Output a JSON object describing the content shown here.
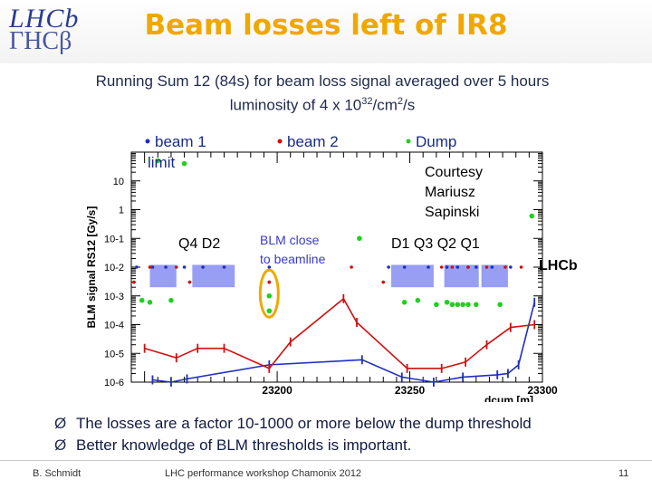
{
  "header": {
    "logo_line1": "LHCb",
    "logo_line2": "ΓHCβ",
    "title": "Beam losses left of IR8"
  },
  "subtitle": {
    "line1": "Running Sum 12 (84s) for beam loss signal averaged over 5 hours",
    "line2_prefix": "luminosity of 4 x 10",
    "line2_exp": "32",
    "line2_mid": "/cm",
    "line2_exp2": "2",
    "line2_suffix": "/s"
  },
  "chart_data": {
    "type": "scatter",
    "xlabel": "dcum [m]",
    "ylabel": "BLM signal RS12 [Gy/s]",
    "xlim": [
      23145,
      23300
    ],
    "ylim": [
      1e-06,
      100
    ],
    "y_scale": "log",
    "x_ticks": [
      23200,
      23250,
      23300
    ],
    "y_ticks": [
      {
        "value": 10,
        "label": "10"
      },
      {
        "value": 1,
        "label": "1"
      },
      {
        "value": 0.1,
        "label": "10-1"
      },
      {
        "value": 0.01,
        "label": "10-2"
      },
      {
        "value": 0.001,
        "label": "10-3"
      },
      {
        "value": 0.0001,
        "label": "10-4"
      },
      {
        "value": 1e-05,
        "label": "10-5"
      },
      {
        "value": 1e-06,
        "label": "10-6"
      }
    ],
    "legend": [
      {
        "label": "beam 1",
        "color": "#1f2fbf"
      },
      {
        "label": "beam 2",
        "color": "#d01010"
      },
      {
        "label": "Dump",
        "color": "#20d020"
      }
    ],
    "series": [
      {
        "name": "beam 1",
        "color": "#1f2fbf",
        "x": [
          23153,
          23160,
          23166,
          23197,
          23232,
          23247,
          23259,
          23270,
          23283,
          23287,
          23291,
          23297
        ],
        "y": [
          1.2e-06,
          1e-06,
          1.3e-06,
          4e-06,
          6e-06,
          1.5e-06,
          1e-06,
          1.5e-06,
          1.8e-06,
          2e-06,
          4e-06,
          0.0006
        ]
      },
      {
        "name": "beam 2",
        "color": "#d01010",
        "x": [
          23150,
          23162,
          23170,
          23180,
          23197,
          23205,
          23225,
          23230,
          23249,
          23262,
          23271,
          23279,
          23288,
          23297
        ],
        "y": [
          1.5e-05,
          7e-06,
          1.5e-05,
          1.5e-05,
          3e-06,
          2.5e-05,
          0.0008,
          0.00012,
          3e-06,
          3e-06,
          5e-06,
          2e-05,
          8e-05,
          0.0001
        ]
      },
      {
        "name": "Dump",
        "color": "#20d020",
        "x": [
          23155,
          23165,
          23197,
          23197,
          23231,
          23248,
          23253,
          23260,
          23264,
          23266,
          23268,
          23270,
          23272,
          23275,
          23284,
          23296
        ],
        "y": [
          50,
          40,
          0.001,
          0.0003,
          0.1,
          0.0006,
          0.0007,
          0.0005,
          0.0006,
          0.0005,
          0.0005,
          0.0005,
          0.0005,
          0.0005,
          0.0005,
          0.6
        ]
      },
      {
        "name": "dump-low",
        "color": "#20d020",
        "x": [
          23149,
          23152,
          23160
        ],
        "y": [
          0.0007,
          0.0006,
          0.0007
        ]
      }
    ],
    "markers": {
      "blue_dots": {
        "x": [
          23147,
          23153,
          23158,
          23165,
          23172,
          23180,
          23197,
          23197,
          23242,
          23248,
          23257,
          23264,
          23268,
          23272,
          23275,
          23281,
          23288
        ],
        "y": [
          0.01,
          0.01,
          0.01,
          0.01,
          0.01,
          0.01,
          0.01,
          0.003,
          0.01,
          0.01,
          0.01,
          0.01,
          0.01,
          0.01,
          0.01,
          0.01,
          0.01
        ]
      },
      "red_dots": {
        "x": [
          23146,
          23152,
          23162,
          23167,
          23197,
          23228,
          23240,
          23262,
          23266,
          23272,
          23279,
          23286,
          23292
        ],
        "y": [
          0.003,
          0.01,
          0.01,
          0.003,
          0.003,
          0.01,
          0.003,
          0.01,
          0.01,
          0.01,
          0.01,
          0.01,
          0.01
        ]
      },
      "bands": [
        {
          "x0": 23152,
          "x1": 23162,
          "y0": 0.002,
          "y1": 0.012
        },
        {
          "x0": 23168,
          "x1": 23184,
          "y0": 0.002,
          "y1": 0.012
        },
        {
          "x0": 23243,
          "x1": 23259,
          "y0": 0.002,
          "y1": 0.012
        },
        {
          "x0": 23263,
          "x1": 23276,
          "y0": 0.002,
          "y1": 0.012
        },
        {
          "x0": 23277,
          "x1": 23287,
          "y0": 0.002,
          "y1": 0.012
        }
      ]
    },
    "annotations": {
      "magnets_left": "Q4  D2",
      "blm_close": [
        "BLM close",
        "to beamline"
      ],
      "magnets_right": "D1  Q3  Q2  Q1",
      "courtesy": [
        "Courtesy",
        "Mariusz",
        "Sapinski"
      ],
      "experiment": "LHCb",
      "limit": "limit"
    }
  },
  "bullets": [
    "The losses are a factor 10-1000 or more below the dump threshold",
    "Better knowledge of BLM thresholds is important."
  ],
  "bullet_glyph": "Ø",
  "footer": {
    "author": "B. Schmidt",
    "event": "LHC performance workshop Chamonix 2012",
    "page": "11"
  }
}
